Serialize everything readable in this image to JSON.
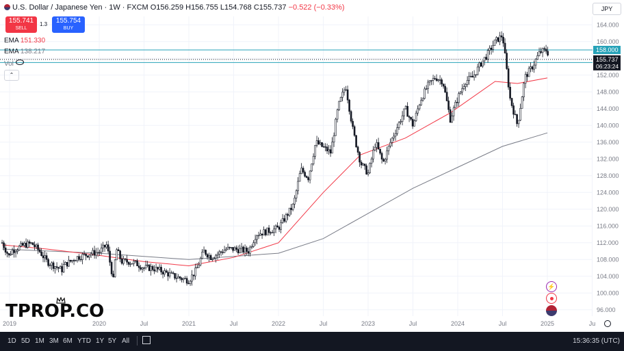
{
  "header": {
    "symbol_text": "U.S. Dollar / Japanese Yen · 1W · FXCM",
    "ohlc_text": "O156.259 H156.755 L154.768 C155.737",
    "change_text": "−0.522 (−0.33%)"
  },
  "trade": {
    "sell_price": "155.741",
    "sell_label": "SELL",
    "spread": "1.3",
    "buy_price": "155.754",
    "buy_label": "BUY"
  },
  "indicators": [
    {
      "name": "EMA",
      "value": "151.330",
      "color": "#f23645"
    },
    {
      "name": "EMA",
      "value": "138.217",
      "color": "#787b86"
    }
  ],
  "vol_label": "Vol",
  "currency_button": "JPY",
  "watermark": "TPROP.CO",
  "bottom_bar": {
    "timeframes": [
      "1D",
      "5D",
      "1M",
      "3M",
      "6M",
      "YTD",
      "1Y",
      "5Y",
      "All"
    ],
    "clock": "15:36:35 (UTC)"
  },
  "colors": {
    "bull": "#131722",
    "bear": "#131722",
    "ema_fast": "#f23645",
    "ema_slow": "#787b86",
    "hline": "#26a2b8",
    "last_price_bg": "#131722",
    "axis_text": "#787b86"
  },
  "chart_data": {
    "type": "candlestick",
    "title": "U.S. Dollar / Japanese Yen · 1W · FXCM",
    "y_axis": {
      "ticks": [
        96,
        100,
        104,
        108,
        112,
        116,
        120,
        124,
        128,
        132,
        136,
        140,
        144,
        148,
        152,
        156,
        160,
        164
      ],
      "tick_labels": [
        "96.000",
        "100.000",
        "104.000",
        "108.000",
        "112.000",
        "116.000",
        "120.000",
        "124.000",
        "128.000",
        "132.000",
        "136.000",
        "140.000",
        "144.000",
        "148.000",
        "152.000",
        "156.000",
        "160.000",
        "164.000"
      ],
      "ylim": [
        94.5,
        166
      ]
    },
    "x_axis": {
      "tick_labels": [
        "2019",
        "2020",
        "Jul",
        "2021",
        "Jul",
        "2022",
        "Jul",
        "2023",
        "Jul",
        "2024",
        "Jul",
        "2025",
        "Ju"
      ],
      "tick_dates": [
        "2019-01",
        "2020-01",
        "2020-07",
        "2021-01",
        "2021-07",
        "2022-01",
        "2022-07",
        "2023-01",
        "2023-07",
        "2024-01",
        "2024-07",
        "2025-01",
        "2025-07"
      ]
    },
    "horizontal_lines": [
      {
        "value": 158.0,
        "label": "158.000",
        "style": "solid"
      },
      {
        "value": 155.0,
        "label": "155.000",
        "style": "solid"
      },
      {
        "value": 155.737,
        "label": "155.737",
        "style": "dotted",
        "sub_label": "06:23:24"
      }
    ],
    "price_path": [
      [
        "2018-12",
        112.0
      ],
      [
        "2019-01",
        108.5
      ],
      [
        "2019-01",
        110.0
      ],
      [
        "2019-03",
        111.5
      ],
      [
        "2019-04",
        111.8
      ],
      [
        "2019-05",
        110.0
      ],
      [
        "2019-06",
        107.5
      ],
      [
        "2019-08",
        105.5
      ],
      [
        "2019-08",
        106.5
      ],
      [
        "2019-10",
        108.5
      ],
      [
        "2019-12",
        109.5
      ],
      [
        "2020-01",
        109.8
      ],
      [
        "2020-02",
        111.5
      ],
      [
        "2020-03",
        102.0
      ],
      [
        "2020-03",
        111.0
      ],
      [
        "2020-04",
        107.5
      ],
      [
        "2020-05",
        107.5
      ],
      [
        "2020-06",
        107.0
      ],
      [
        "2020-07",
        106.0
      ],
      [
        "2020-08",
        106.0
      ],
      [
        "2020-09",
        105.5
      ],
      [
        "2020-11",
        104.0
      ],
      [
        "2020-12",
        103.5
      ],
      [
        "2021-01",
        103.0
      ],
      [
        "2021-02",
        105.5
      ],
      [
        "2021-03",
        110.0
      ],
      [
        "2021-04",
        108.5
      ],
      [
        "2021-06",
        110.5
      ],
      [
        "2021-07",
        110.5
      ],
      [
        "2021-09",
        110.0
      ],
      [
        "2021-10",
        114.0
      ],
      [
        "2021-12",
        115.0
      ],
      [
        "2022-01",
        115.5
      ],
      [
        "2022-03",
        121.0
      ],
      [
        "2022-04",
        129.5
      ],
      [
        "2022-05",
        127.5
      ],
      [
        "2022-06",
        136.0
      ],
      [
        "2022-08",
        133.5
      ],
      [
        "2022-09",
        144.5
      ],
      [
        "2022-10",
        149.5
      ],
      [
        "2022-11",
        138.5
      ],
      [
        "2022-12",
        131.0
      ],
      [
        "2023-01",
        128.5
      ],
      [
        "2023-02",
        136.0
      ],
      [
        "2023-03",
        131.0
      ],
      [
        "2023-04",
        136.0
      ],
      [
        "2023-05",
        140.0
      ],
      [
        "2023-06",
        144.0
      ],
      [
        "2023-07",
        140.0
      ],
      [
        "2023-08",
        146.0
      ],
      [
        "2023-09",
        149.5
      ],
      [
        "2023-10",
        151.5
      ],
      [
        "2023-11",
        150.5
      ],
      [
        "2023-12",
        141.5
      ],
      [
        "2024-01",
        146.5
      ],
      [
        "2024-02",
        150.5
      ],
      [
        "2024-03",
        151.5
      ],
      [
        "2024-04",
        154.5
      ],
      [
        "2024-05",
        157.0
      ],
      [
        "2024-06",
        160.0
      ],
      [
        "2024-07",
        161.5
      ],
      [
        "2024-08",
        146.5
      ],
      [
        "2024-09",
        140.0
      ],
      [
        "2024-10",
        151.5
      ],
      [
        "2024-11",
        154.0
      ],
      [
        "2024-12",
        157.5
      ],
      [
        "2025-01",
        158.0
      ],
      [
        "2025-01",
        155.7
      ]
    ],
    "ema_fast_path": [
      [
        "2018-12",
        111.5
      ],
      [
        "2019-06",
        110.5
      ],
      [
        "2020-01",
        109.0
      ],
      [
        "2020-07",
        107.5
      ],
      [
        "2021-01",
        106.5
      ],
      [
        "2021-07",
        108.5
      ],
      [
        "2022-01",
        112.0
      ],
      [
        "2022-07",
        124.0
      ],
      [
        "2022-12",
        133.0
      ],
      [
        "2023-06",
        137.0
      ],
      [
        "2023-12",
        143.0
      ],
      [
        "2024-06",
        150.5
      ],
      [
        "2024-09",
        150.0
      ],
      [
        "2025-01",
        151.33
      ]
    ],
    "ema_slow_path": [
      [
        "2018-12",
        110.5
      ],
      [
        "2020-01",
        109.5
      ],
      [
        "2021-01",
        108.0
      ],
      [
        "2022-01",
        109.5
      ],
      [
        "2022-07",
        113.0
      ],
      [
        "2023-01",
        119.0
      ],
      [
        "2023-07",
        125.0
      ],
      [
        "2024-01",
        130.0
      ],
      [
        "2024-07",
        135.0
      ],
      [
        "2025-01",
        138.217
      ]
    ]
  }
}
